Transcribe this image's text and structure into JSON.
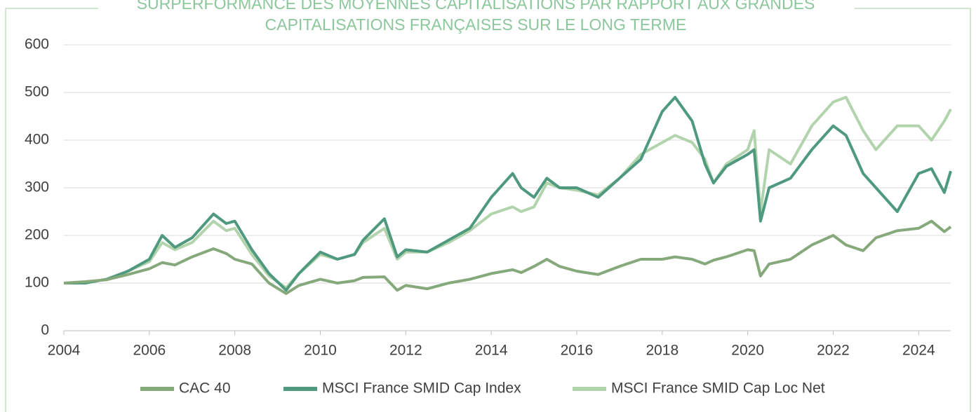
{
  "chart_data": {
    "type": "line",
    "title": "SURPERFORMANCE DES MOYENNES CAPITALISATIONS PAR RAPPORT AUX GRANDES CAPITALISATIONS FRANÇAISES SUR LE LONG TERME",
    "x": [
      2004,
      2004.5,
      2005,
      2005.5,
      2006,
      2006.3,
      2006.6,
      2007,
      2007.5,
      2007.8,
      2008,
      2008.4,
      2008.8,
      2009.2,
      2009.5,
      2010,
      2010.4,
      2010.8,
      2011,
      2011.5,
      2011.8,
      2012,
      2012.5,
      2013,
      2013.5,
      2014,
      2014.5,
      2014.7,
      2015,
      2015.3,
      2015.6,
      2016,
      2016.5,
      2017,
      2017.5,
      2018,
      2018.3,
      2018.7,
      2019,
      2019.2,
      2019.5,
      2020,
      2020.15,
      2020.3,
      2020.5,
      2021,
      2021.5,
      2022,
      2022.3,
      2022.7,
      2023,
      2023.5,
      2024,
      2024.3,
      2024.6,
      2024.75
    ],
    "series": [
      {
        "name": "CAC 40",
        "color": "#86a97c",
        "values": [
          100,
          103,
          107,
          118,
          130,
          143,
          138,
          155,
          172,
          162,
          150,
          140,
          100,
          78,
          95,
          108,
          100,
          105,
          112,
          113,
          85,
          95,
          88,
          100,
          108,
          120,
          128,
          122,
          135,
          150,
          135,
          125,
          118,
          135,
          150,
          150,
          155,
          150,
          140,
          148,
          155,
          170,
          168,
          115,
          140,
          150,
          180,
          200,
          180,
          168,
          195,
          210,
          215,
          230,
          208,
          218
        ]
      },
      {
        "name": "MSCI France SMID Cap Index",
        "color": "#4f9a7f",
        "values": [
          100,
          100,
          108,
          125,
          150,
          200,
          175,
          195,
          245,
          225,
          230,
          170,
          120,
          85,
          120,
          165,
          150,
          160,
          190,
          235,
          155,
          170,
          165,
          190,
          215,
          280,
          330,
          300,
          280,
          320,
          300,
          300,
          280,
          320,
          360,
          460,
          490,
          440,
          350,
          310,
          345,
          370,
          380,
          230,
          300,
          320,
          380,
          430,
          410,
          330,
          300,
          250,
          330,
          340,
          290,
          335
        ]
      },
      {
        "name": "MSCI France SMID Cap Loc Net",
        "color": "#b2d4ad",
        "values": [
          100,
          100,
          108,
          125,
          145,
          185,
          170,
          185,
          230,
          210,
          215,
          160,
          115,
          90,
          120,
          160,
          150,
          160,
          185,
          215,
          150,
          165,
          165,
          185,
          210,
          245,
          260,
          250,
          260,
          310,
          300,
          295,
          285,
          320,
          370,
          395,
          410,
          395,
          360,
          310,
          350,
          380,
          420,
          250,
          380,
          350,
          430,
          480,
          490,
          420,
          380,
          430,
          430,
          400,
          440,
          465
        ]
      }
    ],
    "xlim": [
      2004,
      2024.75
    ],
    "xticks": [
      2004,
      2006,
      2008,
      2010,
      2012,
      2014,
      2016,
      2018,
      2020,
      2022,
      2024
    ],
    "ylim": [
      0,
      600
    ],
    "yticks": [
      0,
      100,
      200,
      300,
      400,
      500,
      600
    ],
    "grid": true,
    "legend": "bottom"
  }
}
